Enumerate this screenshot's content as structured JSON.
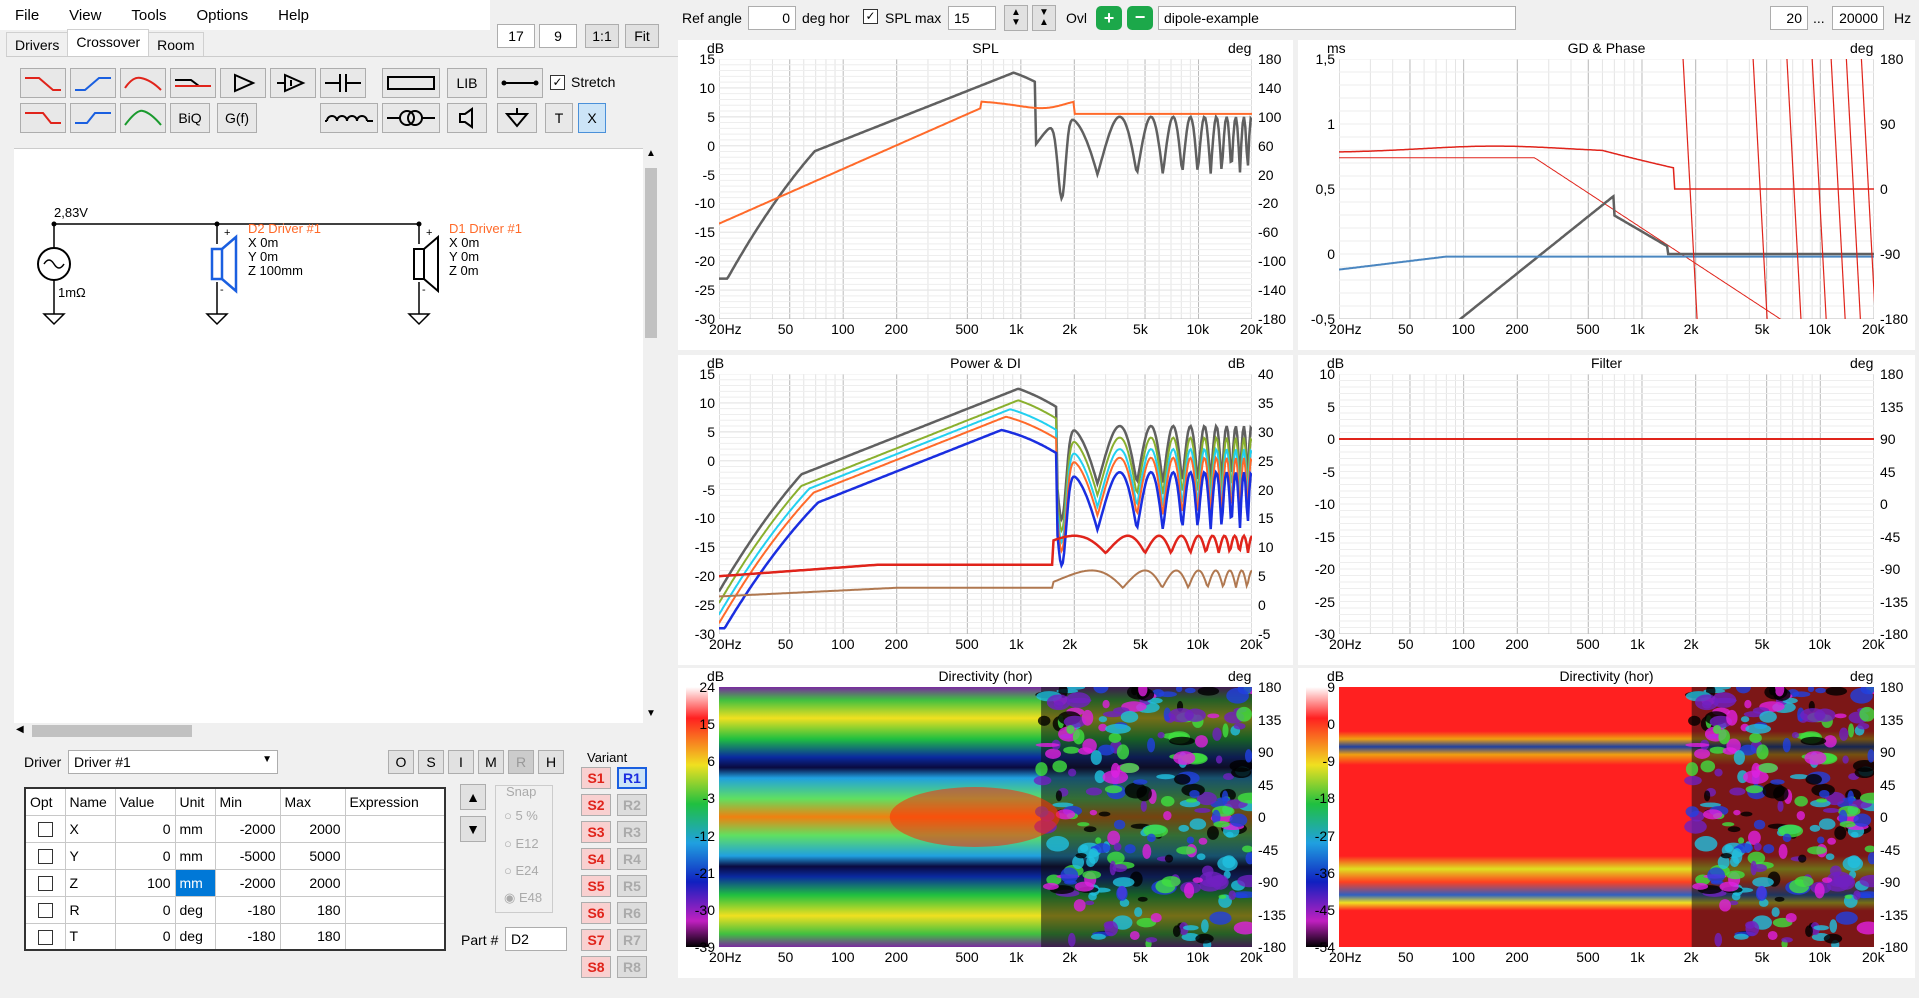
{
  "menu": [
    "File",
    "View",
    "Tools",
    "Options",
    "Help"
  ],
  "zoom": {
    "a": "17",
    "b": "9",
    "ratio": "1:1",
    "fit": "Fit"
  },
  "tabs": [
    "Drivers",
    "Crossover",
    "Room"
  ],
  "tools": {
    "biq": "BiQ",
    "gf": "G(f)",
    "lib": "LIB",
    "t": "T",
    "x": "X",
    "stretch": "Stretch"
  },
  "schematic": {
    "source_v": "2,83V",
    "source_r": "1mΩ",
    "d2": {
      "name": "D2 Driver #1",
      "x": "X 0m",
      "y": "Y 0m",
      "z": "Z 100mm"
    },
    "d1": {
      "name": "D1 Driver #1",
      "x": "X 0m",
      "y": "Y 0m",
      "z": "Z 0m"
    }
  },
  "driver": {
    "label": "Driver",
    "value": "Driver #1",
    "modes": [
      "O",
      "S",
      "I",
      "M",
      "R",
      "H"
    ]
  },
  "params": {
    "headers": [
      "Opt",
      "Name",
      "Value",
      "Unit",
      "Min",
      "Max",
      "Expression"
    ],
    "rows": [
      [
        "",
        "X",
        "0",
        "mm",
        "-2000",
        "2000",
        ""
      ],
      [
        "",
        "Y",
        "0",
        "mm",
        "-5000",
        "5000",
        ""
      ],
      [
        "",
        "Z",
        "100",
        "mm",
        "-2000",
        "2000",
        ""
      ],
      [
        "",
        "R",
        "0",
        "deg",
        "-180",
        "180",
        ""
      ],
      [
        "",
        "T",
        "0",
        "deg",
        "-180",
        "180",
        ""
      ]
    ]
  },
  "snap": {
    "label": "Snap",
    "options": [
      "5 %",
      "E12",
      "E24",
      "E48"
    ]
  },
  "part": {
    "label": "Part #",
    "value": "D2"
  },
  "variant": {
    "label": "Variant",
    "s": [
      "S1",
      "S2",
      "S3",
      "S4",
      "S5",
      "S6",
      "S7",
      "S8"
    ],
    "r": [
      "R1",
      "R2",
      "R3",
      "R4",
      "R5",
      "R6",
      "R7",
      "R8"
    ]
  },
  "top": {
    "ref_angle_label": "Ref angle",
    "ref_angle": "0",
    "deg_hor": "deg hor",
    "spl_max_label": "SPL max",
    "spl_max": "15",
    "ovl": "Ovl",
    "name": "dipole-example",
    "fmin": "20",
    "dots": "...",
    "fmax": "20000",
    "hz": "Hz"
  },
  "charts": {
    "spl": {
      "title": "SPL",
      "lunit": "dB",
      "runit": "deg",
      "left": [
        "15",
        "10",
        "5",
        "0",
        "-5",
        "-10",
        "-15",
        "-20",
        "-25",
        "-30"
      ],
      "right": [
        "180",
        "140",
        "100",
        "60",
        "20",
        "-20",
        "-60",
        "-100",
        "-140",
        "-180"
      ]
    },
    "gd": {
      "title": "GD & Phase",
      "lunit": "ms",
      "runit": "deg",
      "left": [
        "1,5",
        "1",
        "0,5",
        "0",
        "-0,5"
      ],
      "right": [
        "180",
        "90",
        "0",
        "-90",
        "-180"
      ]
    },
    "power": {
      "title": "Power & DI",
      "lunit": "dB",
      "runit": "dB",
      "left": [
        "15",
        "10",
        "5",
        "0",
        "-5",
        "-10",
        "-15",
        "-20",
        "-25",
        "-30"
      ],
      "right": [
        "40",
        "35",
        "30",
        "25",
        "20",
        "15",
        "10",
        "5",
        "0",
        "-5"
      ]
    },
    "filter": {
      "title": "Filter",
      "lunit": "dB",
      "runit": "deg",
      "left": [
        "10",
        "5",
        "0",
        "-5",
        "-10",
        "-15",
        "-20",
        "-25",
        "-30"
      ],
      "right": [
        "180",
        "135",
        "90",
        "45",
        "0",
        "-45",
        "-90",
        "-135",
        "-180"
      ]
    },
    "dir1": {
      "title": "Directivity (hor)",
      "lunit": "dB",
      "runit": "deg",
      "left": [
        "24",
        "15",
        "6",
        "-3",
        "-12",
        "-21",
        "-30",
        "-39"
      ],
      "right": [
        "180",
        "135",
        "90",
        "45",
        "0",
        "-45",
        "-90",
        "-135",
        "-180"
      ]
    },
    "dir2": {
      "title": "Directivity (hor)",
      "lunit": "dB",
      "runit": "deg",
      "left": [
        "9",
        "0",
        "-9",
        "-18",
        "-27",
        "-36",
        "-45",
        "-54"
      ],
      "right": [
        "180",
        "135",
        "90",
        "45",
        "0",
        "-45",
        "-90",
        "-135",
        "-180"
      ]
    }
  },
  "xticks": [
    "20Hz",
    "50",
    "100",
    "200",
    "500",
    "1k",
    "2k",
    "5k",
    "10k",
    "20k"
  ],
  "colors": {
    "grey": "#606060",
    "orange": "#ff6a2a",
    "red": "#e0241b",
    "blue": "#1a2ee0",
    "steel": "#4a86c0",
    "green": "#8ab02e",
    "cyan": "#22d0f0",
    "tan": "#b07850"
  }
}
